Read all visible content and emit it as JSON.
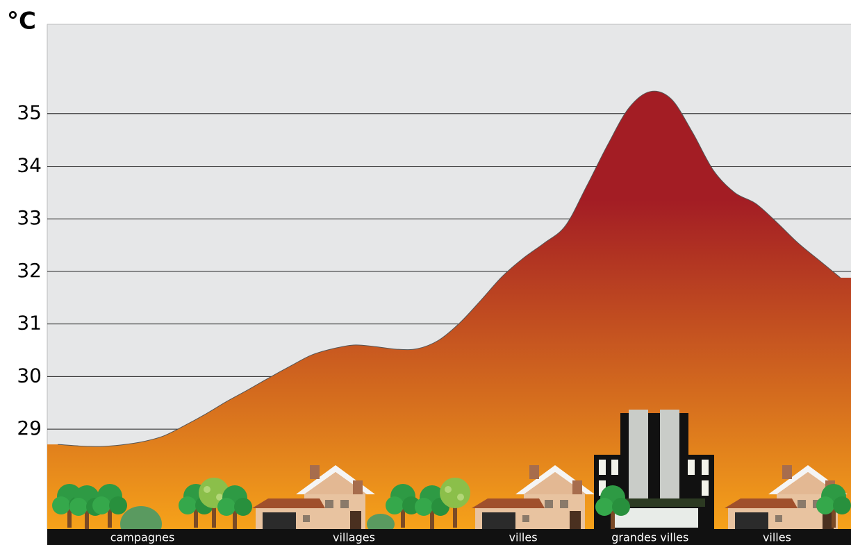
{
  "chart_data": {
    "type": "area",
    "title": "°C",
    "categories": [
      null,
      null,
      null,
      null,
      "campagnes",
      null,
      null,
      null,
      null,
      null,
      null,
      null,
      null,
      null,
      "villages",
      null,
      null,
      null,
      null,
      null,
      null,
      null,
      "villes",
      null,
      null,
      null,
      null,
      null,
      "grandes villes",
      null,
      null,
      null,
      null,
      null,
      "villes",
      null,
      null,
      null
    ],
    "values": [
      28.71,
      28.68,
      28.67,
      28.7,
      28.76,
      28.87,
      29.07,
      29.29,
      29.53,
      29.75,
      29.98,
      30.2,
      30.41,
      30.53,
      30.6,
      30.57,
      30.52,
      30.53,
      30.69,
      31.02,
      31.45,
      31.9,
      32.25,
      32.54,
      32.87,
      33.62,
      34.41,
      35.11,
      35.42,
      35.28,
      34.65,
      33.92,
      33.5,
      33.29,
      32.93,
      32.54,
      32.21,
      31.88
    ],
    "gradient": [
      "#a31d24",
      "#f6a21a"
    ],
    "ylim": [
      27.1,
      36.7
    ],
    "yticks": [
      29,
      30,
      31,
      32,
      33,
      34,
      35
    ],
    "grid": true
  }
}
